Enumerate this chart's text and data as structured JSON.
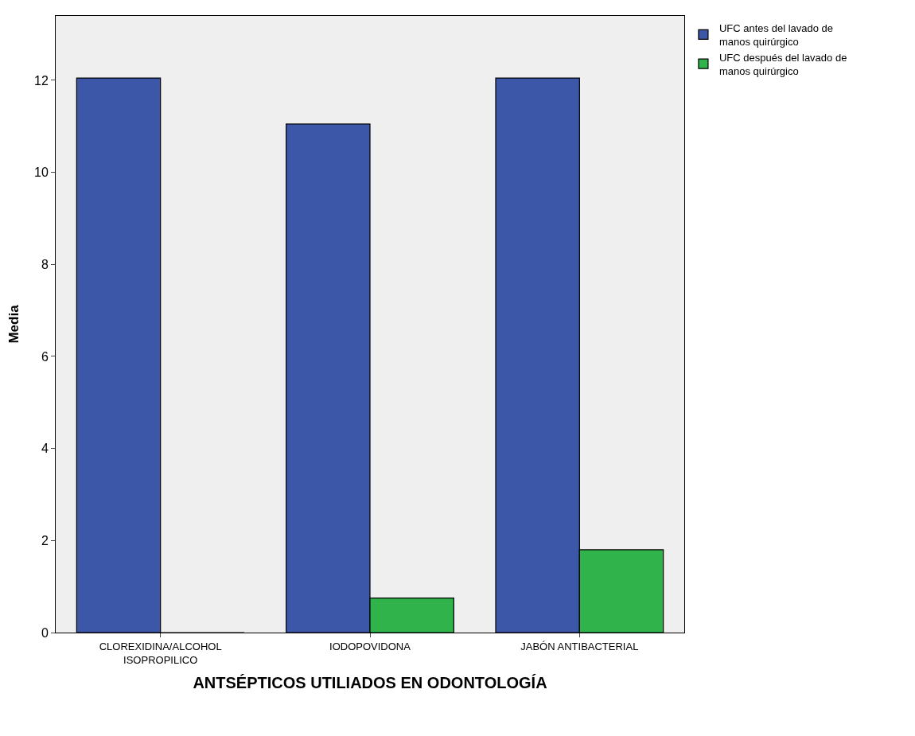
{
  "chart_data": {
    "type": "bar",
    "xlabel": "ANTSÉPTICOS UTILIADOS EN ODONTOLOGÍA",
    "ylabel": "Media",
    "categories": [
      "CLOREXIDINA/ALCOHOL\nISOPROPILICO",
      "IODOPOVIDONA",
      "JABÓN ANTIBACTERIAL"
    ],
    "series": [
      {
        "name": "UFC antes del lavado de\nmanos quirúrgico",
        "color": "#3c57a8",
        "values": [
          12.05,
          11.05,
          12.05
        ]
      },
      {
        "name": "UFC después del lavado de\nmanos quirúrgico",
        "color": "#2fb34a",
        "values": [
          0.0,
          0.75,
          1.8
        ]
      }
    ],
    "ylim": [
      0,
      13.4
    ],
    "yticks": [
      0,
      2,
      4,
      6,
      8,
      10,
      12
    ],
    "grid": false,
    "legend": "top right"
  }
}
